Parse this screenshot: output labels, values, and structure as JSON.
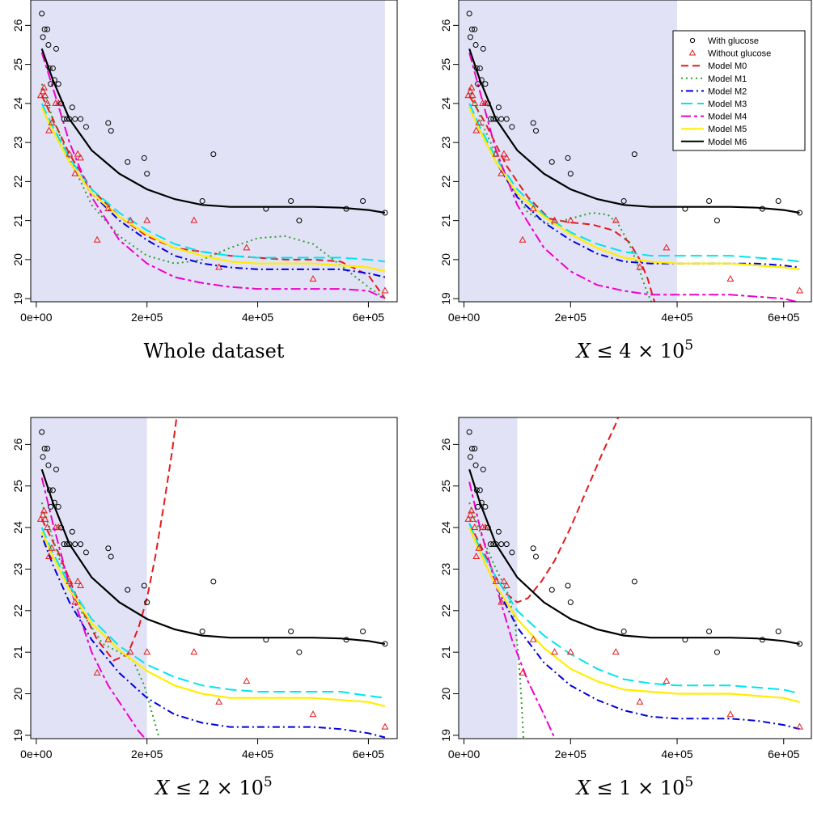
{
  "figure": {
    "background": "#ffffff",
    "shade_color": "#e2e2f6"
  },
  "legend_panel": 1,
  "chart_data": [
    {
      "panel": 1,
      "type": "scatter",
      "caption": "Whole dataset",
      "caption_math": false,
      "shade_max": 630000
    },
    {
      "panel": 2,
      "type": "scatter",
      "caption": "X ≤ 4 × 10^5",
      "caption_math": true,
      "caption_number": "4",
      "shade_max": 400000,
      "legend": "top-right"
    },
    {
      "panel": 3,
      "type": "scatter",
      "caption": "X ≤ 2 × 10^5",
      "caption_math": true,
      "caption_number": "2",
      "shade_max": 200000
    },
    {
      "panel": 4,
      "type": "scatter",
      "caption": "X ≤ 1 × 10^5",
      "caption_math": true,
      "caption_number": "1",
      "shade_max": 100000
    }
  ],
  "axes": {
    "x_range": [
      0,
      630000
    ],
    "y_range": [
      19,
      26.6
    ],
    "x_ticks": [
      0,
      200000,
      400000,
      600000
    ],
    "x_tick_labels": [
      "0e+00",
      "2e+05",
      "4e+05",
      "6e+05"
    ],
    "y_ticks": [
      19,
      20,
      21,
      22,
      23,
      24,
      25,
      26
    ],
    "y_tick_labels": [
      "19",
      "20",
      "21",
      "22",
      "23",
      "24",
      "25",
      "26"
    ],
    "grid": false
  },
  "series_points": {
    "with_glucose": {
      "marker": "circle",
      "color": "#000000",
      "x": [
        10000,
        12000,
        15000,
        20000,
        22000,
        24000,
        26000,
        30000,
        33000,
        36000,
        40000,
        45000,
        50000,
        55000,
        60000,
        65000,
        70000,
        80000,
        90000,
        130000,
        135000,
        165000,
        195000,
        200000,
        300000,
        320000,
        415000,
        460000,
        475000,
        560000,
        590000,
        630000
      ],
      "y": [
        26.3,
        25.7,
        25.9,
        25.9,
        25.5,
        24.9,
        24.5,
        24.9,
        24.6,
        25.4,
        24.5,
        24.0,
        23.6,
        23.6,
        23.6,
        23.9,
        23.6,
        23.6,
        23.4,
        23.5,
        23.3,
        22.5,
        22.6,
        22.2,
        21.5,
        22.7,
        21.3,
        21.5,
        21.0,
        21.3,
        21.5,
        21.2
      ]
    },
    "without_glucose": {
      "marker": "triangle",
      "color": "#e41a1c",
      "x": [
        8000,
        12000,
        14000,
        16000,
        20000,
        23000,
        28000,
        35000,
        40000,
        60000,
        70000,
        75000,
        80000,
        110000,
        130000,
        170000,
        200000,
        285000,
        330000,
        380000,
        500000,
        630000
      ],
      "y": [
        24.2,
        24.3,
        24.4,
        24.2,
        24.0,
        23.3,
        23.5,
        24.0,
        24.0,
        22.7,
        22.2,
        22.7,
        22.6,
        20.5,
        21.3,
        21.0,
        21.0,
        21.0,
        19.8,
        20.3,
        19.5,
        19.2
      ]
    }
  },
  "legend": {
    "entries": [
      {
        "label": "With glucose",
        "kind": "point",
        "marker": "circle",
        "color": "#000000"
      },
      {
        "label": "Without glucose",
        "kind": "point",
        "marker": "triangle",
        "color": "#e41a1c"
      },
      {
        "label": "Model M0",
        "kind": "line",
        "color": "#e41a1c",
        "dash": "dashed"
      },
      {
        "label": "Model M1",
        "kind": "line",
        "color": "#2ca02c",
        "dash": "dotted"
      },
      {
        "label": "Model M2",
        "kind": "line",
        "color": "#0000dd",
        "dash": "dotdash"
      },
      {
        "label": "Model M3",
        "kind": "line",
        "color": "#00e5ee",
        "dash": "longdash"
      },
      {
        "label": "Model M4",
        "kind": "line",
        "color": "#ee00cc",
        "dash": "twodash"
      },
      {
        "label": "Model M5",
        "kind": "line",
        "color": "#ffee00",
        "dash": "solid"
      },
      {
        "label": "Model M6",
        "kind": "line",
        "color": "#000000",
        "dash": "solid"
      }
    ]
  },
  "models": {
    "M6": {
      "color": "#000000",
      "dash": "solid",
      "width": 2.2,
      "x": [
        10000,
        30000,
        60000,
        100000,
        150000,
        200000,
        250000,
        300000,
        350000,
        400000,
        450000,
        500000,
        550000,
        600000,
        630000
      ],
      "y": [
        25.4,
        24.6,
        23.6,
        22.8,
        22.2,
        21.8,
        21.55,
        21.4,
        21.35,
        21.35,
        21.35,
        21.35,
        21.33,
        21.27,
        21.2
      ]
    },
    "M0_full": {
      "color": "#e41a1c",
      "dash": "dashed",
      "width": 2,
      "x": [
        10000,
        30000,
        60000,
        100000,
        150000,
        200000,
        250000,
        300000,
        350000,
        400000,
        450000,
        500000,
        550000,
        600000,
        630000
      ],
      "y": [
        24.2,
        23.6,
        22.7,
        21.8,
        21.1,
        20.6,
        20.3,
        20.2,
        20.1,
        20.05,
        20.0,
        20.0,
        19.95,
        19.6,
        19.0
      ]
    },
    "M1_full": {
      "color": "#2ca02c",
      "dash": "dotted",
      "width": 2,
      "x": [
        10000,
        30000,
        60000,
        100000,
        150000,
        200000,
        250000,
        300000,
        350000,
        400000,
        450000,
        500000,
        550000,
        600000,
        630000
      ],
      "y": [
        24.5,
        23.6,
        22.6,
        21.4,
        20.6,
        20.1,
        19.9,
        20.0,
        20.3,
        20.55,
        20.6,
        20.4,
        19.85,
        19.3,
        19.0
      ]
    },
    "M2_full": {
      "color": "#0000dd",
      "dash": "dotdash",
      "width": 2,
      "x": [
        10000,
        30000,
        60000,
        100000,
        150000,
        200000,
        250000,
        300000,
        350000,
        400000,
        450000,
        500000,
        550000,
        600000,
        630000
      ],
      "y": [
        23.9,
        23.3,
        22.5,
        21.7,
        21.0,
        20.5,
        20.1,
        19.9,
        19.8,
        19.75,
        19.75,
        19.75,
        19.75,
        19.65,
        19.55
      ]
    },
    "M3_full": {
      "color": "#00e5ee",
      "dash": "longdash",
      "width": 2,
      "x": [
        10000,
        30000,
        60000,
        100000,
        150000,
        200000,
        250000,
        300000,
        350000,
        400000,
        450000,
        500000,
        550000,
        600000,
        630000
      ],
      "y": [
        24.0,
        23.4,
        22.6,
        21.8,
        21.2,
        20.75,
        20.4,
        20.2,
        20.1,
        20.05,
        20.05,
        20.05,
        20.05,
        20.0,
        19.95
      ]
    },
    "M4_full": {
      "color": "#ee00cc",
      "dash": "twodash",
      "width": 2,
      "x": [
        10000,
        30000,
        60000,
        100000,
        150000,
        200000,
        250000,
        300000,
        350000,
        400000,
        450000,
        500000,
        550000,
        600000,
        630000
      ],
      "y": [
        25.3,
        24.4,
        23.0,
        21.6,
        20.5,
        19.9,
        19.55,
        19.4,
        19.3,
        19.25,
        19.25,
        19.25,
        19.25,
        19.2,
        19.0
      ]
    },
    "M5_full": {
      "color": "#ffee00",
      "dash": "solid",
      "width": 2.2,
      "x": [
        10000,
        30000,
        60000,
        100000,
        150000,
        200000,
        250000,
        300000,
        350000,
        400000,
        450000,
        500000,
        550000,
        600000,
        630000
      ],
      "y": [
        23.9,
        23.3,
        22.5,
        21.7,
        21.1,
        20.65,
        20.3,
        20.1,
        19.95,
        19.9,
        19.9,
        19.9,
        19.85,
        19.8,
        19.7
      ]
    },
    "M0_p2": {
      "color": "#e41a1c",
      "dash": "dashed",
      "width": 2,
      "x": [
        10000,
        40000,
        80000,
        120000,
        160000,
        200000,
        240000,
        280000,
        310000,
        330000,
        345000,
        360000
      ],
      "y": [
        24.2,
        23.5,
        22.4,
        21.6,
        21.05,
        20.95,
        20.9,
        20.75,
        20.45,
        20.0,
        19.5,
        18.8
      ]
    },
    "M1_p2": {
      "color": "#2ca02c",
      "dash": "dotted",
      "width": 2,
      "x": [
        10000,
        40000,
        80000,
        120000,
        160000,
        200000,
        240000,
        270000,
        290000,
        310000,
        325000,
        340000,
        355000
      ],
      "y": [
        24.4,
        23.3,
        22.1,
        21.2,
        20.9,
        21.05,
        21.2,
        21.15,
        20.9,
        20.4,
        19.9,
        19.3,
        18.8
      ]
    },
    "M2_p2": {
      "color": "#0000dd",
      "dash": "dotdash",
      "width": 2,
      "x": [
        10000,
        30000,
        60000,
        100000,
        150000,
        200000,
        250000,
        300000,
        350000,
        400000,
        450000,
        500000,
        550000,
        600000,
        630000
      ],
      "y": [
        23.9,
        23.3,
        22.5,
        21.6,
        20.95,
        20.5,
        20.15,
        19.95,
        19.9,
        19.9,
        19.9,
        19.9,
        19.9,
        19.85,
        19.8
      ]
    },
    "M3_p2": {
      "color": "#00e5ee",
      "dash": "longdash",
      "width": 2,
      "x": [
        10000,
        30000,
        60000,
        100000,
        150000,
        200000,
        250000,
        300000,
        350000,
        400000,
        450000,
        500000,
        550000,
        600000,
        630000
      ],
      "y": [
        24.0,
        23.4,
        22.6,
        21.8,
        21.15,
        20.7,
        20.4,
        20.2,
        20.1,
        20.1,
        20.1,
        20.1,
        20.05,
        20.0,
        19.95
      ]
    },
    "M4_p2": {
      "color": "#ee00cc",
      "dash": "twodash",
      "width": 2,
      "x": [
        10000,
        30000,
        60000,
        100000,
        150000,
        200000,
        250000,
        300000,
        350000,
        400000,
        450000,
        500000,
        550000,
        600000,
        630000
      ],
      "y": [
        25.3,
        24.3,
        22.8,
        21.4,
        20.3,
        19.7,
        19.35,
        19.2,
        19.1,
        19.1,
        19.1,
        19.1,
        19.05,
        19.0,
        18.9
      ]
    },
    "M5_p2": {
      "color": "#ffee00",
      "dash": "solid",
      "width": 2.2,
      "x": [
        10000,
        30000,
        60000,
        100000,
        150000,
        200000,
        250000,
        300000,
        350000,
        400000,
        450000,
        500000,
        550000,
        600000,
        630000
      ],
      "y": [
        23.9,
        23.3,
        22.5,
        21.7,
        21.1,
        20.65,
        20.3,
        20.05,
        19.95,
        19.9,
        19.9,
        19.9,
        19.85,
        19.8,
        19.75
      ]
    },
    "M0_p3": {
      "color": "#e41a1c",
      "dash": "dashed",
      "width": 2,
      "x": [
        10000,
        40000,
        80000,
        110000,
        140000,
        165000,
        185000,
        200000,
        215000,
        230000,
        245000,
        260000
      ],
      "y": [
        24.2,
        23.4,
        22.1,
        21.3,
        20.8,
        20.95,
        21.6,
        22.3,
        23.3,
        24.5,
        25.8,
        27.3
      ]
    },
    "M1_p3": {
      "color": "#2ca02c",
      "dash": "dotted",
      "width": 2,
      "x": [
        10000,
        40000,
        80000,
        120000,
        150000,
        175000,
        195000,
        210000,
        225000
      ],
      "y": [
        24.6,
        23.3,
        22.0,
        21.2,
        21.0,
        20.8,
        20.2,
        19.5,
        18.8
      ]
    },
    "M2_p3": {
      "color": "#0000dd",
      "dash": "dotdash",
      "width": 2,
      "x": [
        10000,
        30000,
        60000,
        100000,
        150000,
        200000,
        250000,
        300000,
        350000,
        400000,
        450000,
        500000,
        550000,
        600000,
        630000
      ],
      "y": [
        23.8,
        23.1,
        22.2,
        21.3,
        20.5,
        19.9,
        19.5,
        19.3,
        19.2,
        19.2,
        19.2,
        19.2,
        19.15,
        19.05,
        18.95
      ]
    },
    "M3_p3": {
      "color": "#00e5ee",
      "dash": "longdash",
      "width": 2,
      "x": [
        10000,
        30000,
        60000,
        100000,
        150000,
        200000,
        250000,
        300000,
        350000,
        400000,
        450000,
        500000,
        550000,
        600000,
        630000
      ],
      "y": [
        24.0,
        23.4,
        22.6,
        21.8,
        21.15,
        20.7,
        20.4,
        20.2,
        20.1,
        20.05,
        20.05,
        20.05,
        20.05,
        19.95,
        19.9
      ]
    },
    "M4_p3": {
      "color": "#ee00cc",
      "dash": "twodash",
      "width": 2,
      "x": [
        10000,
        30000,
        60000,
        100000,
        130000,
        160000,
        185000,
        205000
      ],
      "y": [
        25.2,
        24.1,
        22.6,
        21.0,
        20.2,
        19.6,
        19.1,
        18.8
      ]
    },
    "M5_p3": {
      "color": "#ffee00",
      "dash": "solid",
      "width": 2.2,
      "x": [
        10000,
        30000,
        60000,
        100000,
        150000,
        200000,
        250000,
        300000,
        350000,
        400000,
        450000,
        500000,
        550000,
        600000,
        630000
      ],
      "y": [
        23.9,
        23.3,
        22.5,
        21.7,
        21.05,
        20.55,
        20.2,
        20.0,
        19.9,
        19.9,
        19.9,
        19.9,
        19.85,
        19.8,
        19.7
      ]
    },
    "M0_p4": {
      "color": "#e41a1c",
      "dash": "dashed",
      "width": 2,
      "x": [
        10000,
        30000,
        60000,
        80000,
        100000,
        120000,
        145000,
        170000,
        200000,
        230000,
        260000,
        285000,
        305000
      ],
      "y": [
        24.1,
        23.6,
        22.8,
        22.4,
        22.2,
        22.3,
        22.7,
        23.2,
        24.0,
        24.9,
        25.8,
        26.5,
        27.2
      ]
    },
    "M1_p4": {
      "color": "#2ca02c",
      "dash": "dotted",
      "width": 2,
      "x": [
        10000,
        30000,
        60000,
        80000,
        95000,
        103000,
        108000,
        112000
      ],
      "y": [
        24.6,
        23.9,
        23.0,
        22.5,
        21.8,
        20.8,
        19.8,
        18.8
      ]
    },
    "M2_p4": {
      "color": "#0000dd",
      "dash": "dotdash",
      "width": 2,
      "x": [
        10000,
        30000,
        60000,
        100000,
        150000,
        200000,
        250000,
        300000,
        350000,
        400000,
        450000,
        500000,
        550000,
        600000,
        630000
      ],
      "y": [
        24.0,
        23.4,
        22.6,
        21.6,
        20.75,
        20.2,
        19.85,
        19.6,
        19.45,
        19.4,
        19.4,
        19.4,
        19.35,
        19.25,
        19.15
      ]
    },
    "M3_p4": {
      "color": "#00e5ee",
      "dash": "longdash",
      "width": 2,
      "x": [
        10000,
        30000,
        60000,
        100000,
        150000,
        200000,
        250000,
        300000,
        350000,
        400000,
        450000,
        500000,
        550000,
        600000,
        630000
      ],
      "y": [
        24.1,
        23.5,
        22.8,
        22.0,
        21.4,
        20.95,
        20.6,
        20.35,
        20.25,
        20.2,
        20.2,
        20.2,
        20.15,
        20.1,
        20.0
      ]
    },
    "M4_p4": {
      "color": "#ee00cc",
      "dash": "twodash",
      "width": 2,
      "x": [
        10000,
        30000,
        60000,
        90000,
        120000,
        150000,
        175000
      ],
      "y": [
        25.1,
        24.0,
        22.6,
        21.3,
        20.3,
        19.5,
        18.8
      ]
    },
    "M5_p4": {
      "color": "#ffee00",
      "dash": "solid",
      "width": 2.2,
      "x": [
        10000,
        30000,
        60000,
        100000,
        150000,
        200000,
        250000,
        300000,
        350000,
        400000,
        450000,
        500000,
        550000,
        600000,
        630000
      ],
      "y": [
        24.0,
        23.4,
        22.6,
        21.8,
        21.1,
        20.6,
        20.3,
        20.1,
        20.05,
        20.0,
        20.0,
        20.0,
        19.95,
        19.9,
        19.8
      ]
    }
  },
  "panel_models": {
    "1": [
      "M0_full",
      "M1_full",
      "M2_full",
      "M3_full",
      "M4_full",
      "M5_full",
      "M6"
    ],
    "2": [
      "M0_p2",
      "M1_p2",
      "M2_p2",
      "M3_p2",
      "M4_p2",
      "M5_p2",
      "M6"
    ],
    "3": [
      "M0_p3",
      "M1_p3",
      "M2_p3",
      "M3_p3",
      "M4_p3",
      "M5_p3",
      "M6"
    ],
    "4": [
      "M0_p4",
      "M1_p4",
      "M2_p4",
      "M3_p4",
      "M4_p4",
      "M5_p4",
      "M6"
    ]
  }
}
